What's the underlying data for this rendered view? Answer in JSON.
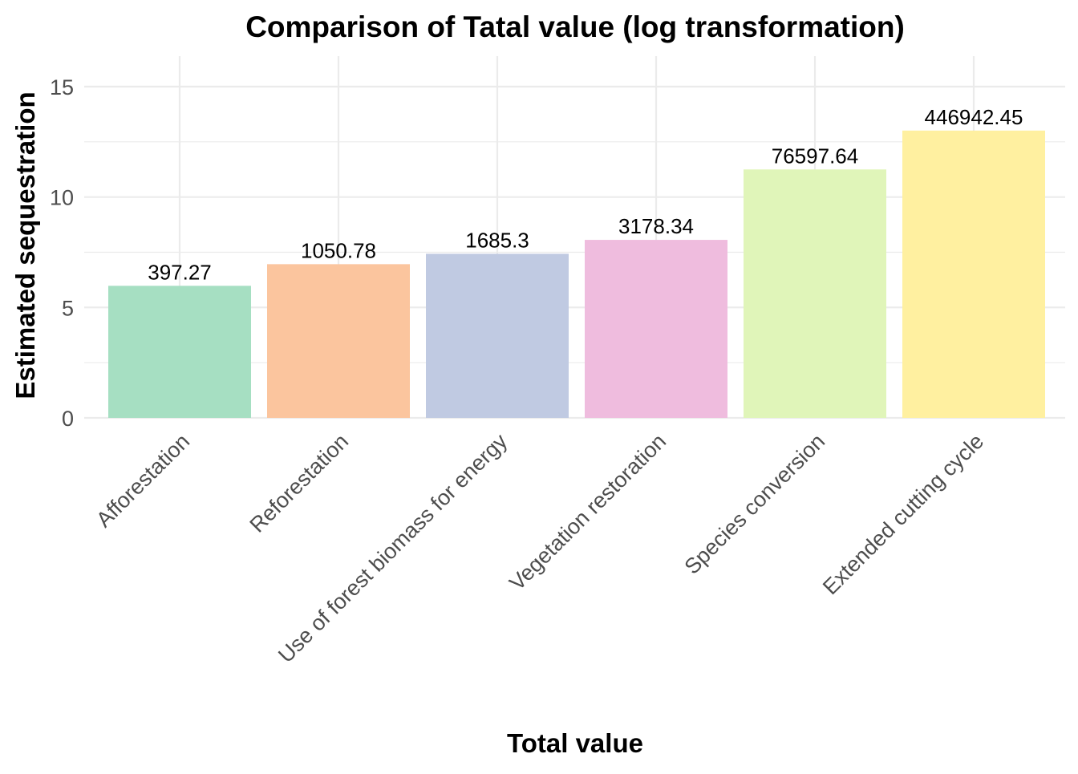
{
  "chart_data": {
    "type": "bar",
    "title": "Comparison of Tatal value (log transformation)",
    "xlabel": "Total value",
    "ylabel": "Estimated sequestration",
    "categories": [
      "Afforestation",
      "Reforestation",
      "Use of forest biomass for energy",
      "Vegetation restoration",
      "Species conversion",
      "Extended cutting cycle"
    ],
    "values": [
      5.98,
      6.96,
      7.43,
      8.06,
      11.25,
      13.01
    ],
    "data_labels": [
      "397.27",
      "1050.78",
      "1685.3",
      "3178.34",
      "76597.64",
      "446942.45"
    ],
    "colors": [
      "#a6dfc2",
      "#fbc59e",
      "#c0cae2",
      "#efbcde",
      "#e0f5b9",
      "#fff0a0"
    ],
    "ylim": [
      0,
      15
    ],
    "yticks": [
      0,
      5,
      10,
      15
    ],
    "grid": true,
    "legend": "none"
  }
}
